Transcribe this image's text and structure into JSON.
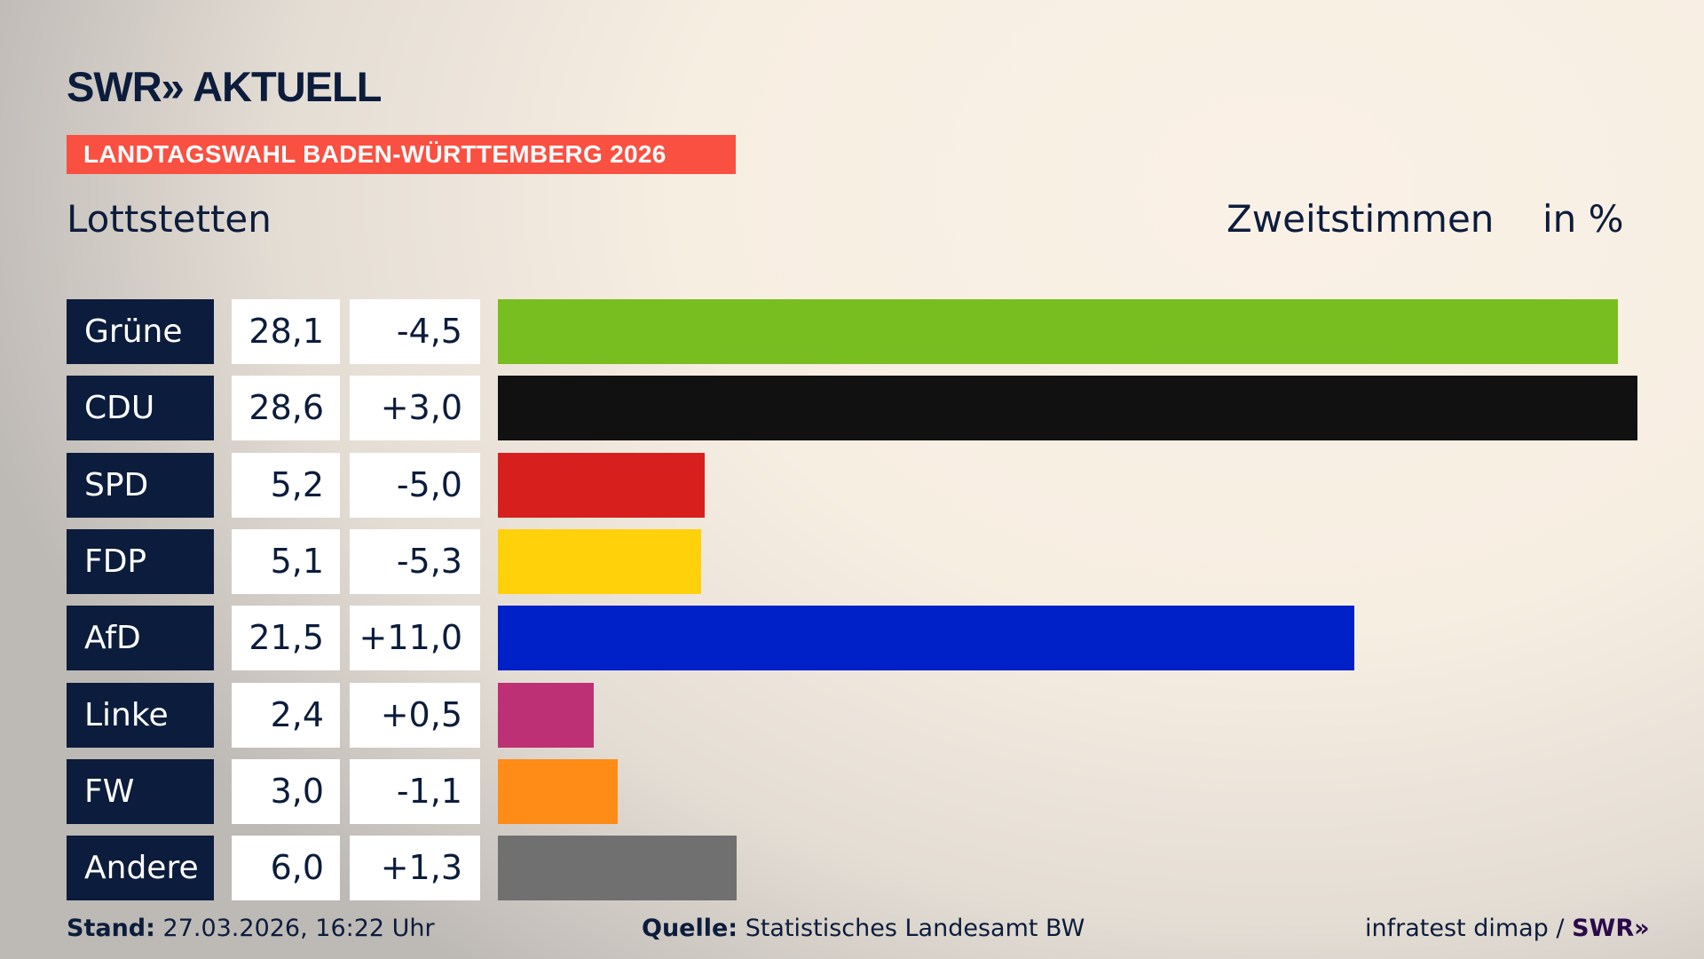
{
  "header": {
    "logo": "SWR» AKTUELL",
    "banner": "LANDTAGSWAHL BADEN-WÜRTTEMBERG 2026",
    "region": "Lottstetten",
    "measure": "Zweitstimmen",
    "unit": "in %"
  },
  "chart_data": {
    "type": "bar",
    "orientation": "horizontal",
    "categories": [
      "Grüne",
      "CDU",
      "SPD",
      "FDP",
      "AfD",
      "Linke",
      "FW",
      "Andere"
    ],
    "values": [
      28.1,
      28.6,
      5.2,
      5.1,
      21.5,
      2.4,
      3.0,
      6.0
    ],
    "value_labels": [
      "28,1",
      "28,6",
      "5,2",
      "5,1",
      "21,5",
      "2,4",
      "3,0",
      "6,0"
    ],
    "diff_labels": [
      "-4,5",
      "+3,0",
      "-5,0",
      "-5,3",
      "+11,0",
      "+0,5",
      "-1,1",
      "+1,3"
    ],
    "colors": [
      "#78be20",
      "#111111",
      "#d7201e",
      "#ffd10a",
      "#0020c8",
      "#be3075",
      "#ff8c17",
      "#707070"
    ],
    "xlim": [
      0,
      28.6
    ],
    "grid": false
  },
  "footer": {
    "stand_label": "Stand:",
    "stand_value": "27.03.2026, 16:22 Uhr",
    "source_label": "Quelle:",
    "source_value": "Statistisches Landesamt BW",
    "credit": "infratest dimap /",
    "credit_logo": "SWR»"
  }
}
